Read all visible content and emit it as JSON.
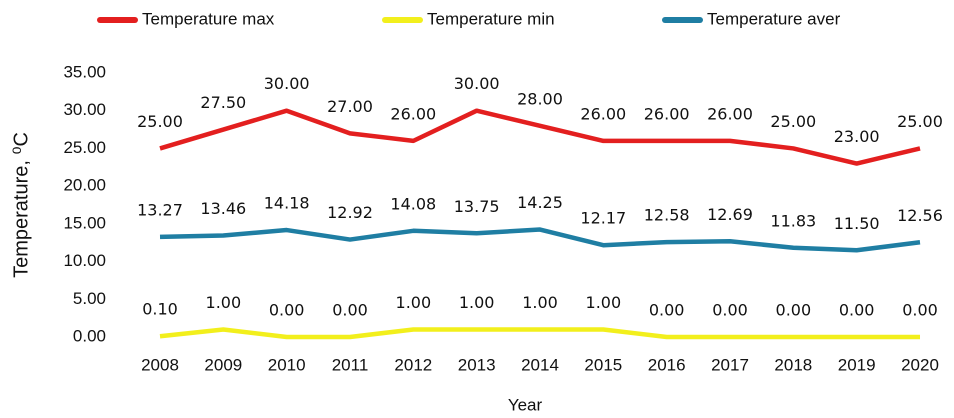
{
  "chart_data": {
    "type": "line",
    "x_label": "Year",
    "y_label": "Temperature, ⁰C",
    "categories": [
      "2008",
      "2009",
      "2010",
      "2011",
      "2012",
      "2013",
      "2014",
      "2015",
      "2016",
      "2017",
      "2018",
      "2019",
      "2020"
    ],
    "series": [
      {
        "name": "Temperature max",
        "color": "#e31f1f",
        "values": [
          25,
          27.5,
          30,
          27,
          26,
          30,
          28,
          26,
          26,
          26,
          25,
          23,
          25
        ],
        "value_labels": [
          "25.00",
          "27.50",
          "30.00",
          "27.00",
          "26.00",
          "30.00",
          "28.00",
          "26.00",
          "26.00",
          "26.00",
          "25.00",
          "23.00",
          "25.00"
        ]
      },
      {
        "name": "Temperature min",
        "color": "#f2ef1c",
        "values": [
          0.1,
          1,
          0,
          0,
          1,
          1,
          1,
          1,
          0,
          0,
          0,
          0,
          0
        ],
        "value_labels": [
          "0.10",
          "1.00",
          "0.00",
          "0.00",
          "1.00",
          "1.00",
          "1.00",
          "1.00",
          "0.00",
          "0.00",
          "0.00",
          "0.00",
          "0.00"
        ]
      },
      {
        "name": "Temperature aver",
        "color": "#1f7ea3",
        "values": [
          13.27,
          13.46,
          14.18,
          12.92,
          14.08,
          13.75,
          14.25,
          12.17,
          12.58,
          12.69,
          11.83,
          11.5,
          12.56
        ],
        "value_labels": [
          "13.27",
          "13.46",
          "14.18",
          "12.92",
          "14.08",
          "13.75",
          "14.25",
          "12.17",
          "12.58",
          "12.69",
          "11.83",
          "11.50",
          "12.56"
        ]
      }
    ],
    "ylim": [
      0,
      35
    ],
    "yticks": [
      {
        "value": 0,
        "label": "0.00"
      },
      {
        "value": 5,
        "label": "5.00"
      },
      {
        "value": 10,
        "label": "10.00"
      },
      {
        "value": 15,
        "label": "15.00"
      },
      {
        "value": 20,
        "label": "20.00"
      },
      {
        "value": 25,
        "label": "25.00"
      },
      {
        "value": 30,
        "label": "30.00"
      },
      {
        "value": 35,
        "label": "35.00"
      }
    ],
    "legend": "top"
  }
}
